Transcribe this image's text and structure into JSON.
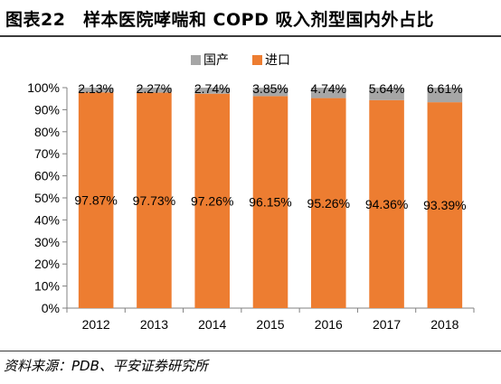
{
  "title": "图表22　样本医院哮喘和 COPD 吸入剂型国内外占比",
  "source": "资料来源：PDB、平安证券研究所",
  "colors": {
    "domestic": "#a6a6a6",
    "import": "#ed7d31",
    "axis": "#808080",
    "text": "#000000"
  },
  "chart_data": {
    "type": "bar",
    "stacked": true,
    "percent": true,
    "categories": [
      "2012",
      "2013",
      "2014",
      "2015",
      "2016",
      "2017",
      "2018"
    ],
    "series": [
      {
        "name": "进口",
        "values": [
          97.87,
          97.73,
          97.26,
          96.15,
          95.26,
          94.36,
          93.39
        ],
        "labels": [
          "97.87%",
          "97.73%",
          "97.26%",
          "96.15%",
          "95.26%",
          "94.36%",
          "93.39%"
        ]
      },
      {
        "name": "国产",
        "values": [
          2.13,
          2.27,
          2.74,
          3.85,
          4.74,
          5.64,
          6.61
        ],
        "labels": [
          "2.13%",
          "2.27%",
          "2.74%",
          "3.85%",
          "4.74%",
          "5.64%",
          "6.61%"
        ]
      }
    ],
    "legend_order": [
      "国产",
      "进口"
    ],
    "ylim": [
      0,
      100
    ],
    "yticks": [
      "0%",
      "10%",
      "20%",
      "30%",
      "40%",
      "50%",
      "60%",
      "70%",
      "80%",
      "90%",
      "100%"
    ],
    "legend_position": "top-center",
    "grid": false
  }
}
